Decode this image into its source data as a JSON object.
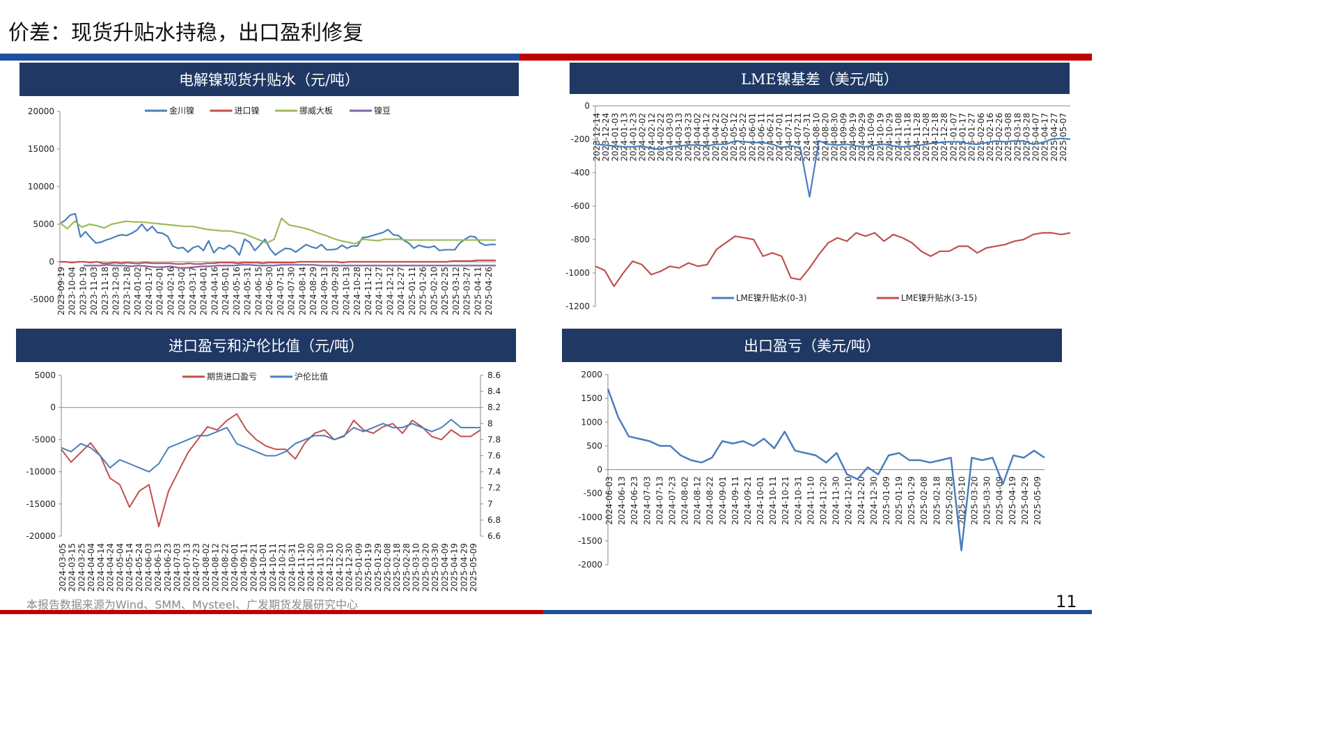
{
  "page": {
    "title": "价差：现货升贴水持稳，出口盈利修复",
    "source": "本报告数据来源为Wind、SMM、Mysteel、广发期货发展研究中心",
    "page_number": "11",
    "colors": {
      "header_bg": "#1f3864",
      "top_bar_blue": "#1f4e9c",
      "top_bar_red": "#c00000"
    }
  },
  "chart_data": [
    {
      "type": "line",
      "title": "电解镍现货升贴水（元/吨）",
      "ylim": [
        -5000,
        20000
      ],
      "yticks": [
        20000,
        15000,
        10000,
        5000,
        0,
        -5000
      ],
      "x_ticks": [
        "2023-09-19",
        "2023-10-04",
        "2023-10-19",
        "2023-11-03",
        "2023-11-18",
        "2023-12-03",
        "2023-12-18",
        "2024-01-02",
        "2024-01-17",
        "2024-02-01",
        "2024-02-16",
        "2024-03-02",
        "2024-03-17",
        "2024-04-01",
        "2024-04-16",
        "2024-05-01",
        "2024-05-16",
        "2024-05-31",
        "2024-06-15",
        "2024-06-30",
        "2024-07-15",
        "2024-07-30",
        "2024-08-14",
        "2024-08-29",
        "2024-09-13",
        "2024-09-28",
        "2024-10-13",
        "2024-10-28",
        "2024-11-12",
        "2024-11-27",
        "2024-12-12",
        "2024-12-27",
        "2025-01-11",
        "2025-01-26",
        "2025-02-10",
        "2025-02-25",
        "2025-03-12",
        "2025-03-27",
        "2025-04-11",
        "2025-04-26"
      ],
      "series": [
        {
          "name": "金川镍",
          "color": "#4a7ebb",
          "values": [
            5100,
            5500,
            6200,
            6400,
            3300,
            4000,
            3200,
            2500,
            2600,
            2900,
            3100,
            3400,
            3600,
            3500,
            3800,
            4200,
            5000,
            4100,
            4700,
            3900,
            3800,
            3400,
            2100,
            1800,
            1900,
            1300,
            1900,
            2100,
            1500,
            2800,
            1200,
            1900,
            1700,
            2200,
            1800,
            900,
            3000,
            2600,
            1500,
            2200,
            3000,
            1700,
            900,
            1400,
            1800,
            1700,
            1300,
            1800,
            2300,
            2000,
            1800,
            2300,
            1600,
            1600,
            1700,
            2200,
            1800,
            2100,
            2100,
            3200,
            3300,
            3500,
            3700,
            3900,
            4300,
            3600,
            3500,
            2900,
            2500,
            1800,
            2200,
            2000,
            1900,
            2100,
            1500,
            1600,
            1600,
            1600,
            2500,
            3000,
            3400,
            3300,
            2500,
            2200,
            2300,
            2300
          ]
        },
        {
          "name": "进口镍",
          "color": "#c0504d",
          "values": [
            0,
            0,
            -100,
            0,
            0,
            -100,
            0,
            -200,
            -200,
            -100,
            -200,
            -100,
            -200,
            -200,
            -100,
            -200,
            -200,
            -200,
            -200,
            -300,
            -300,
            -200,
            -300,
            -300,
            -200,
            -200,
            -100,
            -100,
            -100,
            -200,
            -100,
            -100,
            -100,
            -200,
            -100,
            -100,
            -100,
            -100,
            -100,
            0,
            0,
            0,
            0,
            0,
            0,
            0,
            -100,
            0,
            0,
            0,
            0,
            0,
            0,
            0,
            0,
            0,
            0,
            0,
            0,
            0,
            0,
            0,
            0,
            0,
            100,
            100,
            100,
            100,
            200,
            200,
            200,
            200
          ]
        },
        {
          "name": "挪威大板",
          "color": "#9bbb59",
          "values": [
            5200,
            4400,
            5400,
            4600,
            5000,
            4800,
            4500,
            5000,
            5200,
            5400,
            5300,
            5300,
            5200,
            5100,
            5000,
            4900,
            4800,
            4700,
            4700,
            4500,
            4300,
            4200,
            4100,
            4100,
            3900,
            3700,
            3300,
            2900,
            2500,
            3000,
            5800,
            4900,
            4700,
            4500,
            4200,
            3800,
            3500,
            3100,
            2800,
            2600,
            2400,
            3000,
            2900,
            2800,
            3000,
            3000,
            3000,
            2900,
            2900,
            2900,
            2900,
            2900,
            2900,
            2900,
            2900,
            2900,
            2900,
            2900,
            2900,
            2900
          ]
        },
        {
          "name": "镍豆",
          "color": "#8064a2",
          "values": [
            -500,
            -500,
            -500,
            -400,
            -500,
            -500,
            -600,
            -500,
            -600,
            -700,
            -700,
            -600,
            -800,
            -800,
            -700,
            -600,
            -600,
            -500,
            -500,
            -500,
            -400,
            -400,
            -500,
            -500,
            -500,
            -400,
            -400,
            -400,
            -400,
            -400,
            -500,
            -500,
            -500,
            -500,
            -500,
            -500,
            -500,
            -500,
            -500,
            -500,
            -500,
            -500,
            -500,
            -500,
            -500,
            -500,
            -500,
            -500,
            -500,
            -500,
            -500,
            -500,
            -500
          ]
        }
      ]
    },
    {
      "type": "line",
      "title": "LME镍基差（美元/吨）",
      "ylim": [
        -1200,
        0
      ],
      "yticks": [
        0,
        -200,
        -400,
        -600,
        -800,
        -1000,
        -1200
      ],
      "x_ticks": [
        "2023-12-14",
        "2023-12-24",
        "2024-01-03",
        "2024-01-13",
        "2024-01-23",
        "2024-02-02",
        "2024-02-12",
        "2024-02-22",
        "2024-03-03",
        "2024-03-13",
        "2024-03-23",
        "2024-04-02",
        "2024-04-12",
        "2024-04-22",
        "2024-05-02",
        "2024-05-12",
        "2024-05-22",
        "2024-06-01",
        "2024-06-11",
        "2024-06-21",
        "2024-07-01",
        "2024-07-11",
        "2024-07-21",
        "2024-07-31",
        "2024-08-10",
        "2024-08-20",
        "2024-08-30",
        "2024-09-09",
        "2024-09-19",
        "2024-09-29",
        "2024-10-09",
        "2024-10-19",
        "2024-10-29",
        "2024-11-08",
        "2024-11-18",
        "2024-11-28",
        "2024-12-08",
        "2024-12-18",
        "2024-12-28",
        "2025-01-07",
        "2025-01-17",
        "2025-01-27",
        "2025-02-06",
        "2025-02-16",
        "2025-02-26",
        "2025-03-08",
        "2025-03-18",
        "2025-03-28",
        "2025-04-07",
        "2025-04-17",
        "2025-04-27",
        "2025-05-07"
      ],
      "series": [
        {
          "name": "LME镍升贴水(0-3)",
          "color": "#4a7ebb",
          "values": [
            -230,
            -235,
            -240,
            -245,
            -245,
            -240,
            -255,
            -260,
            -245,
            -240,
            -235,
            -235,
            -240,
            -230,
            -230,
            -210,
            -215,
            -220,
            -220,
            -230,
            -250,
            -240,
            -250,
            -545,
            -210,
            -230,
            -235,
            -230,
            -240,
            -245,
            -235,
            -230,
            -240,
            -245,
            -240,
            -235,
            -225,
            -220,
            -215,
            -215,
            -225,
            -230,
            -220,
            -210,
            -215,
            -210,
            -210,
            -230,
            -220,
            -200,
            -195,
            -200
          ]
        },
        {
          "name": "LME镍升贴水(3-15)",
          "color": "#c0504d",
          "values": [
            -960,
            -985,
            -1080,
            -1000,
            -930,
            -950,
            -1010,
            -990,
            -960,
            -970,
            -940,
            -960,
            -950,
            -860,
            -820,
            -780,
            -790,
            -800,
            -900,
            -880,
            -900,
            -1030,
            -1040,
            -970,
            -890,
            -820,
            -790,
            -810,
            -760,
            -780,
            -760,
            -810,
            -770,
            -790,
            -820,
            -870,
            -900,
            -870,
            -870,
            -840,
            -840,
            -880,
            -850,
            -840,
            -830,
            -810,
            -800,
            -770,
            -760,
            -760,
            -770,
            -760
          ]
        }
      ]
    },
    {
      "type": "line",
      "title": "进口盈亏和沪伦比值（元/吨）",
      "ylim": [
        -20000,
        5000
      ],
      "yticks": [
        5000,
        0,
        -5000,
        -10000,
        -15000,
        -20000
      ],
      "y2lim": [
        6.6,
        8.6
      ],
      "y2ticks": [
        "8.6",
        "8.4",
        "8.2",
        "8",
        "7.8",
        "7.6",
        "7.4",
        "7.2",
        "7",
        "6.8",
        "6.6"
      ],
      "x_ticks": [
        "2024-03-05",
        "2024-03-15",
        "2024-03-25",
        "2024-04-04",
        "2024-04-14",
        "2024-04-24",
        "2024-05-04",
        "2024-05-14",
        "2024-05-24",
        "2024-06-03",
        "2024-06-13",
        "2024-06-23",
        "2024-07-03",
        "2024-07-13",
        "2024-07-23",
        "2024-08-02",
        "2024-08-12",
        "2024-08-22",
        "2024-09-01",
        "2024-09-11",
        "2024-09-21",
        "2024-10-01",
        "2024-10-11",
        "2024-10-21",
        "2024-10-31",
        "2024-11-10",
        "2024-11-20",
        "2024-11-30",
        "2024-12-10",
        "2024-12-20",
        "2024-12-30",
        "2025-01-09",
        "2025-01-19",
        "2025-01-29",
        "2025-02-08",
        "2025-02-18",
        "2025-02-28",
        "2025-03-10",
        "2025-03-20",
        "2025-03-30",
        "2025-04-09",
        "2025-04-19",
        "2025-04-29",
        "2025-05-09"
      ],
      "series": [
        {
          "name": "期货进口盈亏",
          "color": "#c0504d",
          "axis": "left",
          "values": [
            -6500,
            -8500,
            -7000,
            -5500,
            -7500,
            -11000,
            -12000,
            -15500,
            -13000,
            -12000,
            -18500,
            -13000,
            -10000,
            -7000,
            -5000,
            -3000,
            -3500,
            -2000,
            -1000,
            -3500,
            -5000,
            -6000,
            -6500,
            -6500,
            -8000,
            -5500,
            -4000,
            -3500,
            -5000,
            -4500,
            -2000,
            -3500,
            -4000,
            -3000,
            -2500,
            -4000,
            -2000,
            -3000,
            -4500,
            -5000,
            -3500,
            -4500,
            -4500,
            -3500
          ]
        },
        {
          "name": "沪伦比值",
          "color": "#4a7ebb",
          "axis": "right",
          "values": [
            7.7,
            7.65,
            7.75,
            7.7,
            7.6,
            7.45,
            7.55,
            7.5,
            7.45,
            7.4,
            7.5,
            7.7,
            7.75,
            7.8,
            7.85,
            7.85,
            7.9,
            7.95,
            7.75,
            7.7,
            7.65,
            7.6,
            7.6,
            7.65,
            7.75,
            7.8,
            7.85,
            7.85,
            7.8,
            7.85,
            7.95,
            7.9,
            7.95,
            8.0,
            7.95,
            7.95,
            8.0,
            7.95,
            7.9,
            7.95,
            8.05,
            7.95,
            7.95,
            7.95
          ]
        }
      ]
    },
    {
      "type": "line",
      "title": "出口盈亏（美元/吨）",
      "ylim": [
        -2000,
        2000
      ],
      "yticks": [
        2000,
        1500,
        1000,
        500,
        0,
        -500,
        -1000,
        -1500,
        -2000
      ],
      "x_ticks": [
        "2024-06-03",
        "2024-06-13",
        "2024-06-23",
        "2024-07-03",
        "2024-07-13",
        "2024-07-23",
        "2024-08-02",
        "2024-08-12",
        "2024-08-22",
        "2024-09-01",
        "2024-09-11",
        "2024-09-21",
        "2024-10-01",
        "2024-10-11",
        "2024-10-21",
        "2024-10-31",
        "2024-11-10",
        "2024-11-20",
        "2024-11-30",
        "2024-12-10",
        "2024-12-20",
        "2024-12-30",
        "2025-01-09",
        "2025-01-19",
        "2025-01-29",
        "2025-02-08",
        "2025-02-18",
        "2025-02-28",
        "2025-03-10",
        "2025-03-20",
        "2025-03-30",
        "2025-04-09",
        "2025-04-19",
        "2025-04-29",
        "2025-05-09"
      ],
      "series": [
        {
          "name": "出口盈亏",
          "color": "#4a7ebb",
          "values": [
            1700,
            1100,
            700,
            650,
            600,
            500,
            500,
            300,
            200,
            150,
            250,
            600,
            550,
            600,
            500,
            650,
            450,
            800,
            400,
            350,
            300,
            150,
            350,
            -100,
            -200,
            50,
            -100,
            300,
            350,
            200,
            200,
            150,
            200,
            250,
            -1700,
            250,
            200,
            250,
            -300,
            300,
            250,
            400,
            250
          ]
        }
      ]
    }
  ]
}
